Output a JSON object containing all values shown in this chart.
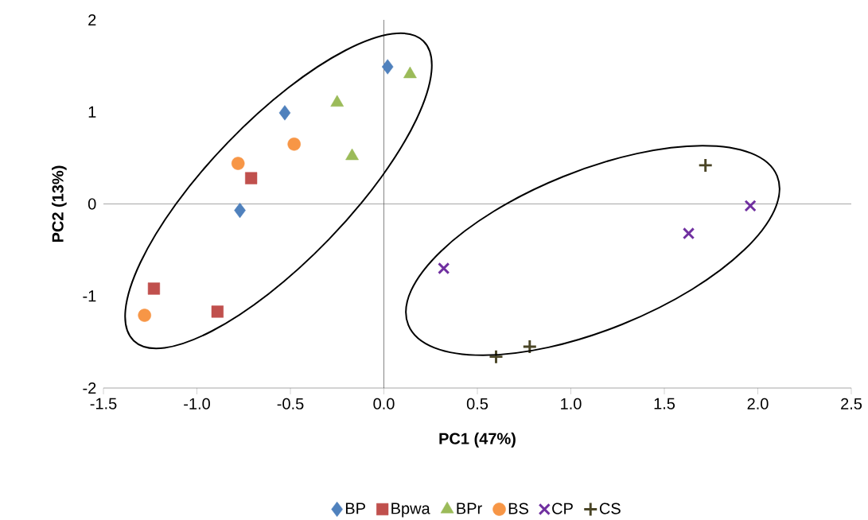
{
  "chart_data": {
    "type": "scatter",
    "xlabel": "PC1 (47%)",
    "ylabel": "PC2 (13%)",
    "xlim": [
      -1.5,
      2.5
    ],
    "ylim": [
      -2,
      2
    ],
    "xticks": [
      {
        "value": -1.5,
        "label": "-1.5"
      },
      {
        "value": -1,
        "label": "-1.0"
      },
      {
        "value": -0.5,
        "label": "-0.5"
      },
      {
        "value": 0,
        "label": "0.0"
      },
      {
        "value": 0.5,
        "label": "0.5"
      },
      {
        "value": 1,
        "label": "1.0"
      },
      {
        "value": 1.5,
        "label": "1.5"
      },
      {
        "value": 2,
        "label": "2.0"
      },
      {
        "value": 2.5,
        "label": "2.5"
      }
    ],
    "yticks": [
      -2,
      -1,
      0,
      1,
      2
    ],
    "legend": "bottom",
    "ref_lines": [
      {
        "axis": "x",
        "value": 0,
        "color": "#1a1a1a"
      },
      {
        "axis": "y",
        "value": 0,
        "color": "#595959"
      }
    ],
    "series": [
      {
        "name": "BP",
        "color": "#4f81bd",
        "marker": "diamond",
        "x": [
          0.02,
          -0.53,
          -0.77
        ],
        "values": [
          1.49,
          0.99,
          -0.07
        ]
      },
      {
        "name": "Bpwa",
        "color": "#c0504d",
        "marker": "square",
        "x": [
          -0.71,
          -1.23,
          -0.89
        ],
        "values": [
          0.28,
          -0.92,
          -1.17
        ]
      },
      {
        "name": "BPr",
        "color": "#9bbb59",
        "marker": "triangle",
        "x": [
          0.14,
          -0.25,
          -0.17
        ],
        "values": [
          1.41,
          1.1,
          0.52
        ]
      },
      {
        "name": "BS",
        "color": "#f79646",
        "marker": "circle",
        "x": [
          -0.48,
          -0.78,
          -1.28
        ],
        "values": [
          0.65,
          0.44,
          -1.21
        ]
      },
      {
        "name": "CP",
        "color": "#7030a0",
        "marker": "cross",
        "x": [
          0.32,
          1.63,
          1.96
        ],
        "values": [
          -0.7,
          -0.32,
          -0.02
        ]
      },
      {
        "name": "CS",
        "color": "#4a4526",
        "marker": "plus",
        "x": [
          1.72,
          0.6,
          0.78
        ],
        "values": [
          0.42,
          -1.66,
          -1.55
        ]
      }
    ]
  }
}
